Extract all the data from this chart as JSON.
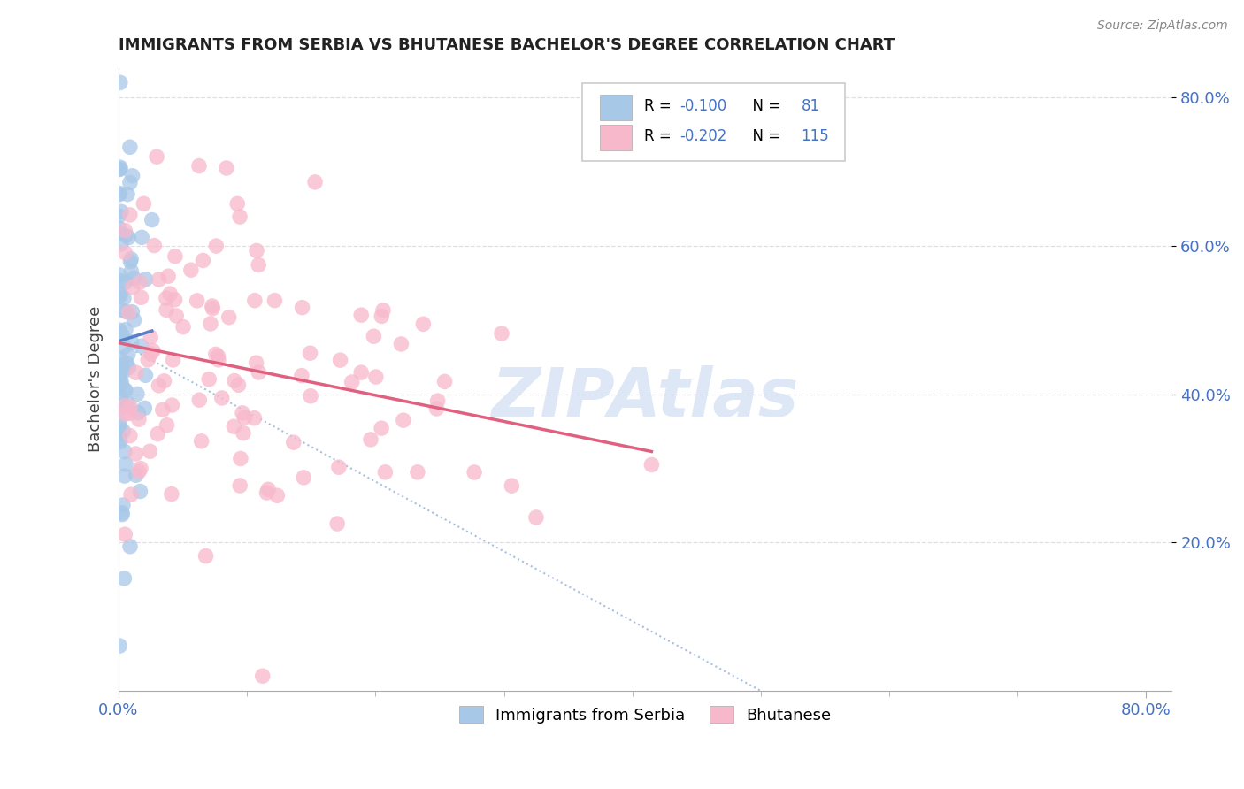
{
  "title": "IMMIGRANTS FROM SERBIA VS BHUTANESE BACHELOR'S DEGREE CORRELATION CHART",
  "source": "Source: ZipAtlas.com",
  "xlabel_serbia": "Immigrants from Serbia",
  "xlabel_bhutanese": "Bhutanese",
  "ylabel": "Bachelor's Degree",
  "serbia_R": -0.1,
  "serbia_N": 81,
  "bhutanese_R": -0.202,
  "bhutanese_N": 115,
  "serbia_color": "#a8c8e8",
  "bhutanese_color": "#f8b8cc",
  "serbia_trend_color": "#5580c8",
  "bhutanese_trend_color": "#e06080",
  "diag_color": "#a8c0e0",
  "background_color": "#ffffff",
  "grid_color": "#e0e0e0",
  "title_color": "#222222",
  "tick_color": "#4472c4",
  "ylabel_color": "#444444",
  "legend_box_color": "#eeeeee",
  "watermark_color": "#c8d8f0"
}
